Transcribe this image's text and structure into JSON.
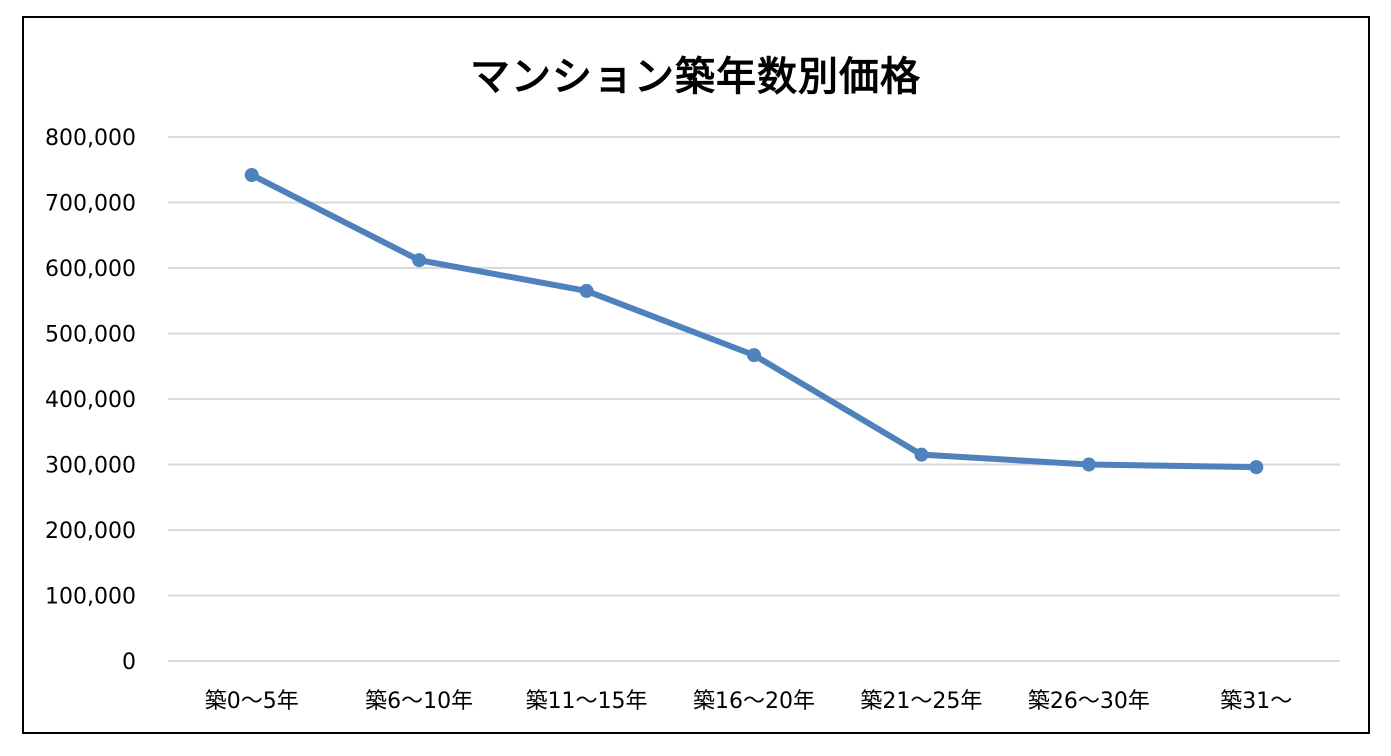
{
  "chart_data": {
    "type": "line",
    "title": "マンション築年数別価格",
    "categories": [
      "築0～5年",
      "築6～10年",
      "築11～15年",
      "築16～20年",
      "築21～25年",
      "築26～30年",
      "築31～"
    ],
    "series": [
      {
        "values": [
          742000,
          612000,
          565000,
          467000,
          315000,
          300000,
          296000
        ]
      }
    ],
    "ylim": [
      0,
      800000
    ],
    "yticks": [
      "0",
      "100,000",
      "200,000",
      "300,000",
      "400,000",
      "500,000",
      "600,000",
      "700,000",
      "800,000"
    ],
    "grid": true,
    "legend": "none",
    "colors": {
      "line": "#4F81BD",
      "grid": "#D9D9D9",
      "frame": "#000000"
    }
  }
}
